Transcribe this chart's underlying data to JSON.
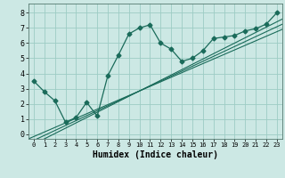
{
  "title": "",
  "xlabel": "Humidex (Indice chaleur)",
  "bg_color": "#cce8e4",
  "line_color": "#1a6b5a",
  "scatter_x": [
    0,
    1,
    2,
    3,
    4,
    5,
    6,
    7,
    8,
    9,
    10,
    11,
    12,
    13,
    14,
    15,
    16,
    17,
    18,
    19,
    20,
    21,
    22,
    23
  ],
  "scatter_y": [
    3.5,
    2.8,
    2.2,
    0.8,
    1.1,
    2.1,
    1.2,
    3.85,
    5.2,
    6.6,
    7.0,
    7.2,
    6.0,
    5.6,
    4.8,
    5.0,
    5.5,
    6.3,
    6.4,
    6.5,
    6.8,
    6.95,
    7.25,
    8.0
  ],
  "xlim": [
    -0.5,
    23.5
  ],
  "ylim": [
    -0.3,
    8.6
  ],
  "xticks": [
    0,
    1,
    2,
    3,
    4,
    5,
    6,
    7,
    8,
    9,
    10,
    11,
    12,
    13,
    14,
    15,
    16,
    17,
    18,
    19,
    20,
    21,
    22,
    23
  ],
  "yticks": [
    0,
    1,
    2,
    3,
    4,
    5,
    6,
    7,
    8
  ],
  "reg_lines": [
    [
      -0.15,
      0.3
    ],
    [
      -0.4,
      0.325
    ],
    [
      -0.65,
      0.35
    ]
  ]
}
